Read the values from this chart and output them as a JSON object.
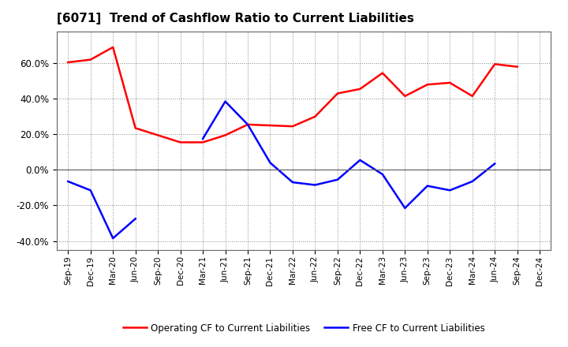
{
  "title": "[6071]  Trend of Cashflow Ratio to Current Liabilities",
  "x_labels": [
    "Sep-19",
    "Dec-19",
    "Mar-20",
    "Jun-20",
    "Sep-20",
    "Dec-20",
    "Mar-21",
    "Jun-21",
    "Sep-21",
    "Dec-21",
    "Mar-22",
    "Jun-22",
    "Sep-22",
    "Dec-22",
    "Mar-23",
    "Jun-23",
    "Sep-23",
    "Dec-23",
    "Mar-24",
    "Jun-24",
    "Sep-24",
    "Dec-24"
  ],
  "operating_cf": [
    0.605,
    0.62,
    0.69,
    0.235,
    0.195,
    0.155,
    0.155,
    0.195,
    0.255,
    0.25,
    0.245,
    0.3,
    0.43,
    0.455,
    0.545,
    0.415,
    0.48,
    0.49,
    0.415,
    0.595,
    0.58,
    null
  ],
  "free_cf": [
    -0.065,
    -0.115,
    -0.385,
    -0.275,
    null,
    null,
    0.175,
    0.385,
    0.255,
    0.04,
    -0.07,
    -0.085,
    -0.055,
    0.055,
    -0.025,
    -0.215,
    -0.09,
    -0.115,
    -0.065,
    0.035,
    null,
    null
  ],
  "operating_color": "#ff0000",
  "free_color": "#0000ff",
  "background_color": "#ffffff",
  "plot_bg_color": "#ffffff",
  "grid_color": "#888888",
  "ylim": [
    -0.45,
    0.78
  ],
  "yticks": [
    -0.4,
    -0.2,
    0.0,
    0.2,
    0.4,
    0.6
  ],
  "legend_labels": [
    "Operating CF to Current Liabilities",
    "Free CF to Current Liabilities"
  ],
  "title_fontsize": 11,
  "line_width": 1.8
}
